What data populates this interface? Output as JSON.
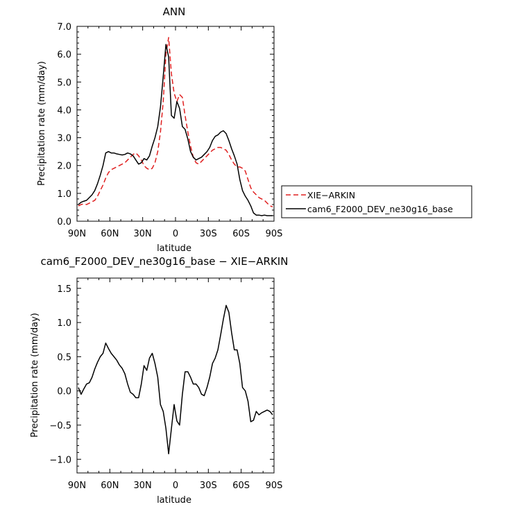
{
  "chart_data": [
    {
      "type": "line",
      "title": "ANN",
      "xlabel": "latitude",
      "ylabel": "Precipitation rate (mm/day)",
      "xlim": [
        -90,
        90
      ],
      "ylim": [
        0,
        7
      ],
      "xticks": [
        -90,
        -60,
        -30,
        0,
        30,
        60,
        90
      ],
      "xtick_labels": [
        "90N",
        "60N",
        "30N",
        "0",
        "30S",
        "60S",
        "90S"
      ],
      "yticks": [
        0,
        1,
        2,
        3,
        4,
        5,
        6,
        7
      ],
      "ytick_labels": [
        "0.0",
        "1.0",
        "2.0",
        "3.0",
        "4.0",
        "5.0",
        "6.0",
        "7.0"
      ],
      "legend_position": "right",
      "grid": false,
      "series": [
        {
          "name": "XIE−ARKIN",
          "color": "#e02020",
          "dash": "dashed",
          "x": [
            -88.75,
            -86.25,
            -83.75,
            -81.25,
            -78.75,
            -76.25,
            -73.75,
            -71.25,
            -68.75,
            -66.25,
            -63.75,
            -61.25,
            -58.75,
            -56.25,
            -53.75,
            -51.25,
            -48.75,
            -46.25,
            -43.75,
            -41.25,
            -38.75,
            -36.25,
            -33.75,
            -31.25,
            -28.75,
            -26.25,
            -23.75,
            -21.25,
            -18.75,
            -16.25,
            -13.75,
            -11.25,
            -8.75,
            -6.25,
            -3.75,
            -1.25,
            1.25,
            3.75,
            6.25,
            8.75,
            11.25,
            13.75,
            16.25,
            18.75,
            21.25,
            23.75,
            26.25,
            28.75,
            31.25,
            33.75,
            36.25,
            38.75,
            41.25,
            43.75,
            46.25,
            48.75,
            51.25,
            53.75,
            56.25,
            58.75,
            61.25,
            63.75,
            66.25,
            68.75,
            71.25,
            73.75,
            76.25,
            78.75,
            81.25,
            83.75,
            86.25,
            88.75
          ],
          "y": [
            0.55,
            0.6,
            0.62,
            0.6,
            0.65,
            0.7,
            0.75,
            0.9,
            1.1,
            1.3,
            1.55,
            1.75,
            1.85,
            1.9,
            1.95,
            2.0,
            2.05,
            2.1,
            2.2,
            2.3,
            2.4,
            2.45,
            2.35,
            2.2,
            2.0,
            1.9,
            1.85,
            1.9,
            2.1,
            2.5,
            3.2,
            4.3,
            6.0,
            6.6,
            5.3,
            4.6,
            4.3,
            4.55,
            4.45,
            3.8,
            3.2,
            2.7,
            2.3,
            2.1,
            2.05,
            2.15,
            2.25,
            2.35,
            2.45,
            2.55,
            2.6,
            2.65,
            2.65,
            2.6,
            2.55,
            2.4,
            2.2,
            2.05,
            1.95,
            1.95,
            1.9,
            1.8,
            1.5,
            1.2,
            1.05,
            0.95,
            0.85,
            0.8,
            0.75,
            0.65,
            0.55,
            0.52
          ]
        },
        {
          "name": "cam6_F2000_DEV_ne30g16_base",
          "color": "#000000",
          "dash": "solid",
          "x": [
            -88.75,
            -86.25,
            -83.75,
            -81.25,
            -78.75,
            -76.25,
            -73.75,
            -71.25,
            -68.75,
            -66.25,
            -63.75,
            -61.25,
            -58.75,
            -56.25,
            -53.75,
            -51.25,
            -48.75,
            -46.25,
            -43.75,
            -41.25,
            -38.75,
            -36.25,
            -33.75,
            -31.25,
            -28.75,
            -26.25,
            -23.75,
            -21.25,
            -18.75,
            -16.25,
            -13.75,
            -11.25,
            -8.75,
            -6.25,
            -3.75,
            -1.25,
            1.25,
            3.75,
            6.25,
            8.75,
            11.25,
            13.75,
            16.25,
            18.75,
            21.25,
            23.75,
            26.25,
            28.75,
            31.25,
            33.75,
            36.25,
            38.75,
            41.25,
            43.75,
            46.25,
            48.75,
            51.25,
            53.75,
            56.25,
            58.75,
            61.25,
            63.75,
            66.25,
            68.75,
            71.25,
            73.75,
            76.25,
            78.75,
            81.25,
            83.75,
            86.25,
            88.75
          ],
          "y": [
            0.6,
            0.68,
            0.72,
            0.75,
            0.85,
            0.95,
            1.1,
            1.35,
            1.65,
            2.0,
            2.45,
            2.5,
            2.45,
            2.45,
            2.42,
            2.4,
            2.38,
            2.4,
            2.45,
            2.42,
            2.35,
            2.2,
            2.05,
            2.1,
            2.25,
            2.2,
            2.35,
            2.7,
            3.0,
            3.4,
            4.1,
            5.2,
            6.35,
            5.9,
            3.8,
            3.7,
            4.3,
            4.05,
            3.4,
            3.3,
            2.95,
            2.5,
            2.3,
            2.2,
            2.25,
            2.3,
            2.4,
            2.5,
            2.65,
            2.9,
            3.05,
            3.1,
            3.2,
            3.25,
            3.15,
            2.9,
            2.6,
            2.35,
            2.05,
            1.5,
            1.1,
            0.9,
            0.75,
            0.55,
            0.3,
            0.22,
            0.22,
            0.2,
            0.22,
            0.2,
            0.2,
            0.2
          ]
        }
      ]
    },
    {
      "type": "line",
      "title": "cam6_F2000_DEV_ne30g16_base − XIE−ARKIN",
      "xlabel": "latitude",
      "ylabel": "Precipitation rate (mm/day)",
      "xlim": [
        -90,
        90
      ],
      "ylim": [
        -1.2,
        1.65
      ],
      "xticks": [
        -90,
        -60,
        -30,
        0,
        30,
        60,
        90
      ],
      "xtick_labels": [
        "90N",
        "60N",
        "30N",
        "0",
        "30S",
        "60S",
        "90S"
      ],
      "yticks": [
        -1.0,
        -0.5,
        0.0,
        0.5,
        1.0,
        1.5
      ],
      "ytick_labels": [
        "−1.0",
        "−0.5",
        "0.0",
        "0.5",
        "1.0",
        "1.5"
      ],
      "grid": false,
      "series": [
        {
          "color": "#000000",
          "dash": "solid",
          "x": [
            -88.75,
            -86.25,
            -83.75,
            -81.25,
            -78.75,
            -76.25,
            -73.75,
            -71.25,
            -68.75,
            -66.25,
            -63.75,
            -61.25,
            -58.75,
            -56.25,
            -53.75,
            -51.25,
            -48.75,
            -46.25,
            -43.75,
            -41.25,
            -38.75,
            -36.25,
            -33.75,
            -31.25,
            -28.75,
            -26.25,
            -23.75,
            -21.25,
            -18.75,
            -16.25,
            -13.75,
            -11.25,
            -8.75,
            -6.25,
            -3.75,
            -1.25,
            1.25,
            3.75,
            6.25,
            8.75,
            11.25,
            13.75,
            16.25,
            18.75,
            21.25,
            23.75,
            26.25,
            28.75,
            31.25,
            33.75,
            36.25,
            38.75,
            41.25,
            43.75,
            46.25,
            48.75,
            51.25,
            53.75,
            56.25,
            58.75,
            61.25,
            63.75,
            66.25,
            68.75,
            71.25,
            73.75,
            76.25,
            78.75,
            81.25,
            83.75,
            86.25,
            88.75
          ],
          "y": [
            0.05,
            -0.05,
            0.03,
            0.1,
            0.12,
            0.2,
            0.32,
            0.42,
            0.5,
            0.55,
            0.7,
            0.62,
            0.55,
            0.5,
            0.45,
            0.38,
            0.33,
            0.25,
            0.1,
            -0.02,
            -0.05,
            -0.1,
            -0.1,
            0.1,
            0.37,
            0.3,
            0.48,
            0.55,
            0.4,
            0.2,
            -0.2,
            -0.3,
            -0.55,
            -0.92,
            -0.55,
            -0.2,
            -0.44,
            -0.5,
            -0.05,
            0.28,
            0.28,
            0.2,
            0.1,
            0.1,
            0.05,
            -0.05,
            -0.07,
            0.05,
            0.2,
            0.4,
            0.48,
            0.6,
            0.82,
            1.05,
            1.25,
            1.15,
            0.85,
            0.6,
            0.6,
            0.4,
            0.05,
            0.0,
            -0.15,
            -0.45,
            -0.43,
            -0.3,
            -0.35,
            -0.32,
            -0.3,
            -0.28,
            -0.3,
            -0.35
          ]
        }
      ]
    }
  ]
}
